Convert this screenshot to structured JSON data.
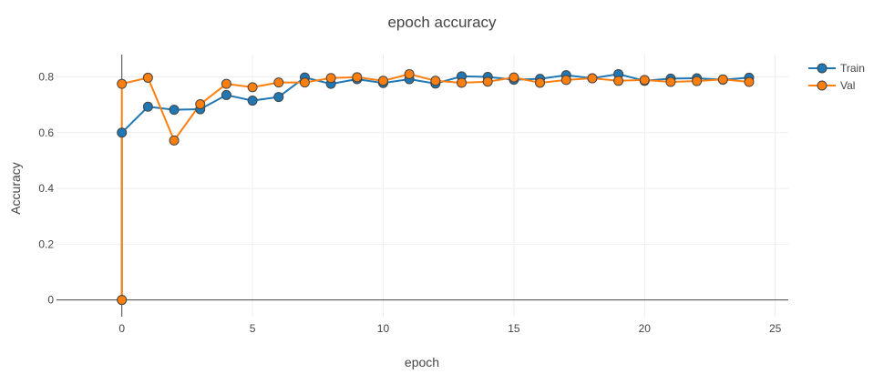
{
  "chart_data": {
    "type": "line",
    "title": "epoch accuracy",
    "xlabel": "epoch",
    "ylabel": "Accuracy",
    "xlim": [
      -2.5,
      25.5
    ],
    "ylim": [
      -0.06,
      0.88
    ],
    "x_ticks": [
      0,
      5,
      10,
      15,
      20,
      25
    ],
    "y_ticks": [
      0,
      0.2,
      0.4,
      0.6,
      0.8
    ],
    "x_tick_labels": [
      "0",
      "5",
      "10",
      "15",
      "20",
      "25"
    ],
    "y_tick_labels": [
      "0",
      "0.2",
      "0.4",
      "0.6",
      "0.8"
    ],
    "grid": true,
    "legend_position": "top-right",
    "series": [
      {
        "name": "Train",
        "color": "#1f77b4",
        "x": [
          0,
          0,
          1,
          2,
          3,
          4,
          5,
          6,
          7,
          8,
          9,
          10,
          11,
          12,
          13,
          14,
          15,
          16,
          17,
          18,
          19,
          20,
          21,
          22,
          23,
          24
        ],
        "y": [
          0,
          0.6,
          0.693,
          0.682,
          0.684,
          0.735,
          0.715,
          0.728,
          0.798,
          0.775,
          0.792,
          0.778,
          0.792,
          0.776,
          0.802,
          0.8,
          0.79,
          0.793,
          0.806,
          0.795,
          0.81,
          0.786,
          0.794,
          0.795,
          0.79,
          0.797
        ]
      },
      {
        "name": "Val",
        "color": "#ff7f0e",
        "x": [
          0,
          0,
          1,
          2,
          3,
          4,
          5,
          6,
          7,
          8,
          9,
          10,
          11,
          12,
          13,
          14,
          15,
          16,
          17,
          18,
          19,
          20,
          21,
          22,
          23,
          24
        ],
        "y": [
          0,
          0.775,
          0.797,
          0.572,
          0.702,
          0.775,
          0.763,
          0.78,
          0.78,
          0.796,
          0.799,
          0.786,
          0.81,
          0.786,
          0.779,
          0.783,
          0.798,
          0.779,
          0.789,
          0.795,
          0.786,
          0.789,
          0.782,
          0.785,
          0.791,
          0.782
        ]
      }
    ]
  }
}
